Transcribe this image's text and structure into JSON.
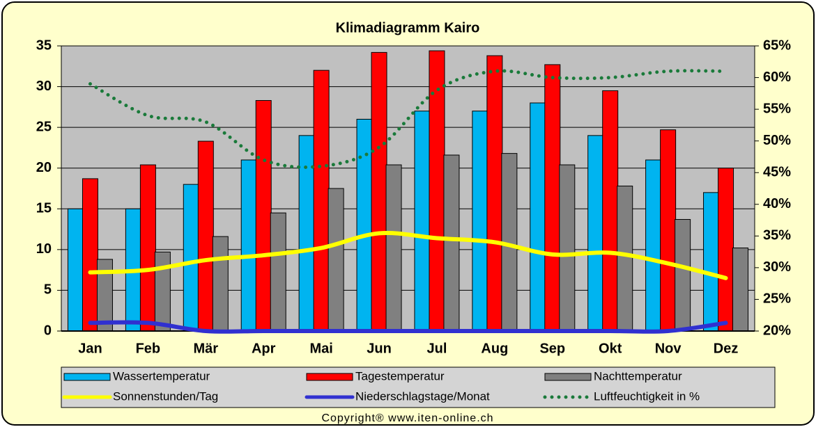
{
  "chart_data": {
    "type": "bar",
    "title": "Klimadiagramm Kairo",
    "copyright": "Copyright® www.iten-online.ch",
    "categories": [
      "Jan",
      "Feb",
      "Mär",
      "Apr",
      "Mai",
      "Jun",
      "Jul",
      "Aug",
      "Sep",
      "Okt",
      "Nov",
      "Dez"
    ],
    "series": [
      {
        "name": "Wassertemperatur",
        "type": "bar",
        "color": "#00b4f0",
        "values": [
          15,
          15,
          18,
          21,
          24,
          26,
          27,
          27,
          28,
          24,
          21,
          17
        ]
      },
      {
        "name": "Tagestemperatur",
        "type": "bar",
        "color": "#ff0000",
        "values": [
          18.7,
          20.4,
          23.3,
          28.3,
          32,
          34.2,
          34.4,
          33.8,
          32.7,
          29.5,
          24.7,
          20
        ]
      },
      {
        "name": "Nachttemperatur",
        "type": "bar",
        "color": "#808080",
        "values": [
          8.8,
          9.7,
          11.6,
          14.5,
          17.5,
          20.4,
          21.6,
          21.8,
          20.4,
          17.8,
          13.7,
          10.2
        ]
      },
      {
        "name": "Sonnenstunden/Tag",
        "type": "line",
        "color": "#ffff00",
        "values": [
          7.2,
          7.5,
          8.7,
          9.3,
          10.2,
          12,
          11.4,
          10.9,
          9.4,
          9.6,
          8.3,
          6.5
        ]
      },
      {
        "name": "Niederschlagstage/Monat",
        "type": "line",
        "color": "#3030d0",
        "values": [
          1,
          1,
          0,
          0,
          0,
          0,
          0,
          0,
          0,
          0,
          0,
          1
        ]
      },
      {
        "name": "Luftfeuchtigkeit in %",
        "type": "line",
        "dash": "dotted",
        "axis": "y2",
        "color": "#1a7a3a",
        "values": [
          59,
          54,
          53,
          47,
          46,
          49,
          58,
          61,
          60,
          60,
          61,
          61
        ]
      }
    ],
    "ylim": [
      0,
      35
    ],
    "yticks": [
      0,
      5,
      10,
      15,
      20,
      25,
      30,
      35
    ],
    "y2lim": [
      20,
      65
    ],
    "y2ticks": [
      {
        "value": 20,
        "label": "20%"
      },
      {
        "value": 25,
        "label": "25%"
      },
      {
        "value": 30,
        "label": "30%"
      },
      {
        "value": 35,
        "label": "35%"
      },
      {
        "value": 40,
        "label": "40%"
      },
      {
        "value": 45,
        "label": "45%"
      },
      {
        "value": 50,
        "label": "50%"
      },
      {
        "value": 55,
        "label": "55%"
      },
      {
        "value": 60,
        "label": "60%"
      },
      {
        "value": 65,
        "label": "65%"
      }
    ],
    "grid": true
  }
}
